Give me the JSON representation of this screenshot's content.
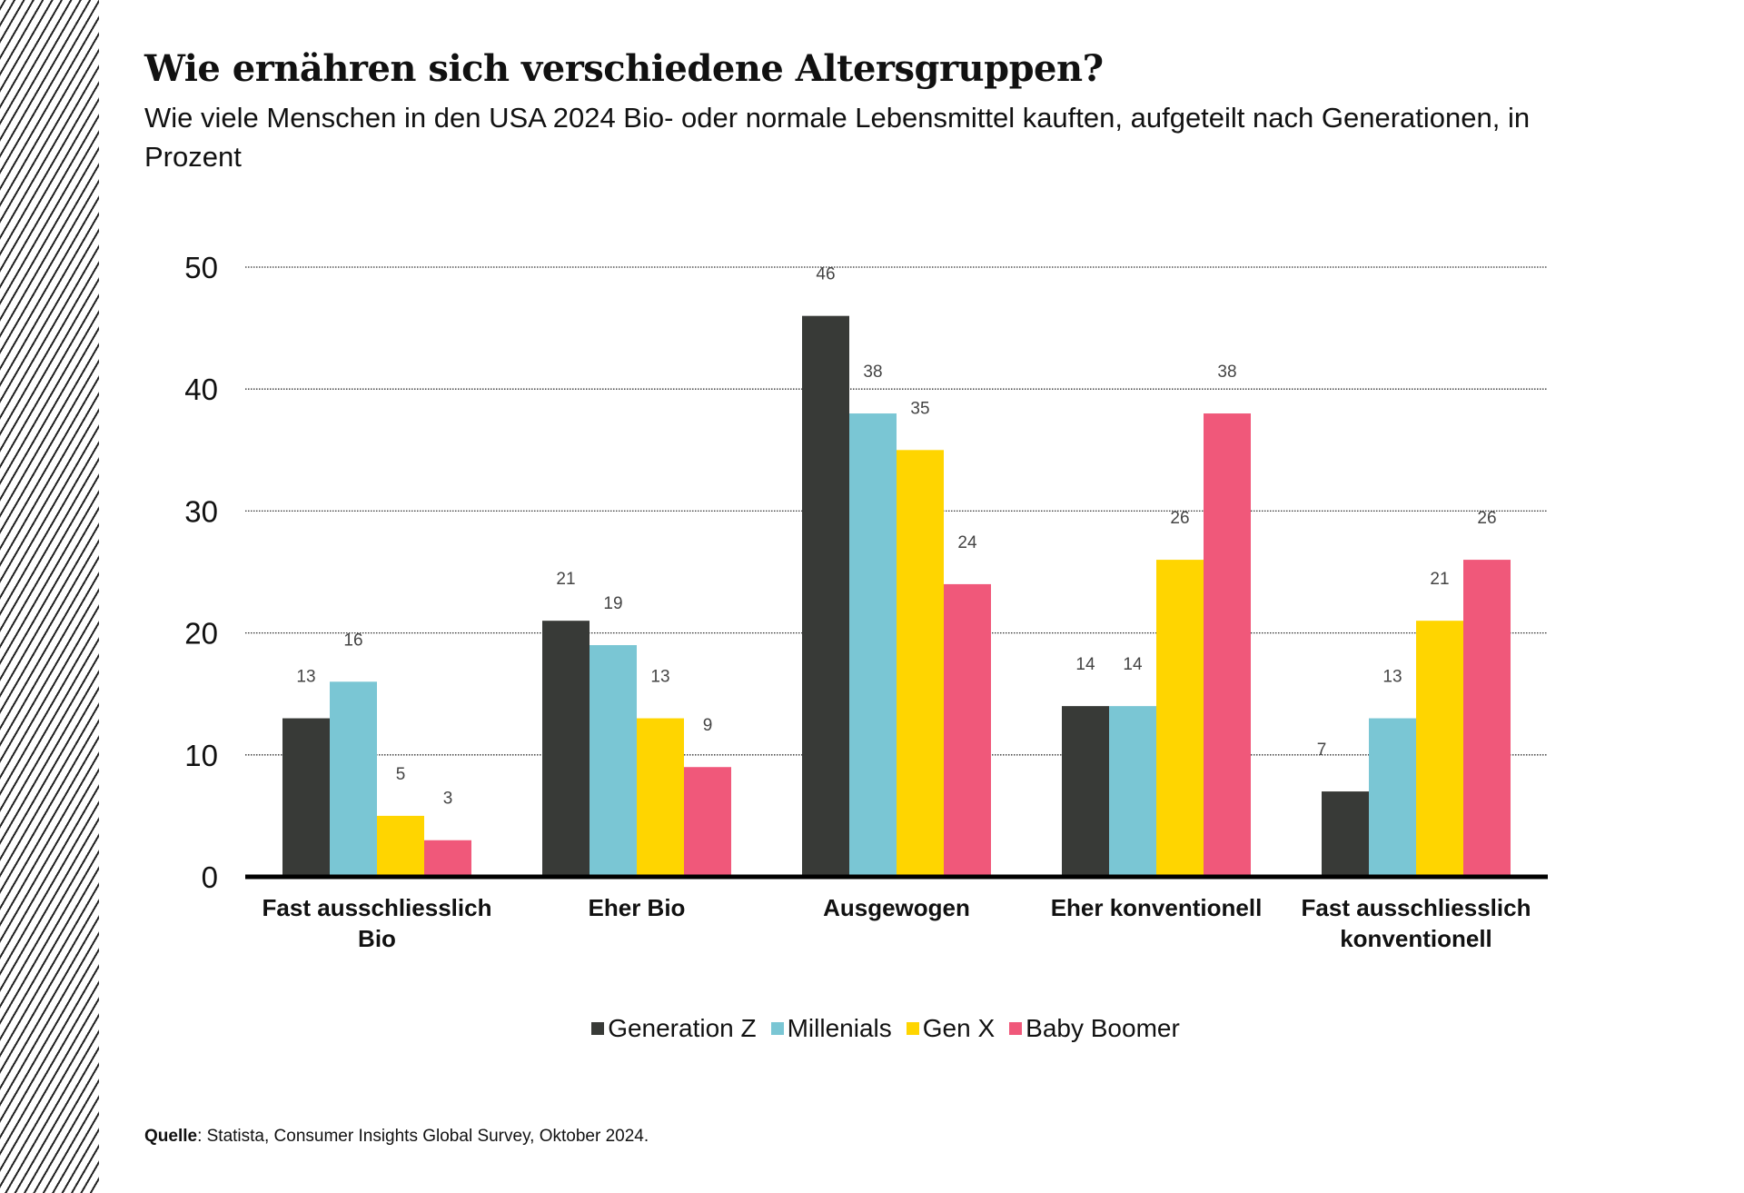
{
  "title": "Wie ernähren sich verschiedene Altersgruppen?",
  "subtitle": "Wie viele Menschen in den USA 2024 Bio- oder normale Lebensmittel kauften, aufgeteilt nach Generationen, in Prozent",
  "source": {
    "label": "Quelle",
    "text": ": Statista, Consumer Insights Global Survey, Oktober 2024."
  },
  "chart_data": {
    "type": "bar",
    "categories": [
      [
        "Fast ausschliesslich",
        "Bio"
      ],
      [
        "Eher Bio"
      ],
      [
        "Ausgewogen"
      ],
      [
        "Eher konventionell"
      ],
      [
        "Fast ausschliesslich",
        "konventionell"
      ]
    ],
    "series": [
      {
        "name": "Generation Z",
        "color": "#383a37",
        "values": [
          13,
          21,
          46,
          14,
          7
        ]
      },
      {
        "name": "Millenials",
        "color": "#7ac6d4",
        "values": [
          16,
          19,
          38,
          14,
          13
        ]
      },
      {
        "name": "Gen X",
        "color": "#ffd500",
        "values": [
          5,
          13,
          35,
          26,
          21
        ]
      },
      {
        "name": "Baby Boomer",
        "color": "#f0587a",
        "values": [
          3,
          9,
          24,
          38,
          26
        ]
      }
    ],
    "ylim": [
      0,
      50
    ],
    "yticks": [
      0,
      10,
      20,
      30,
      40,
      50
    ],
    "grid": true,
    "legend": "bottom"
  }
}
